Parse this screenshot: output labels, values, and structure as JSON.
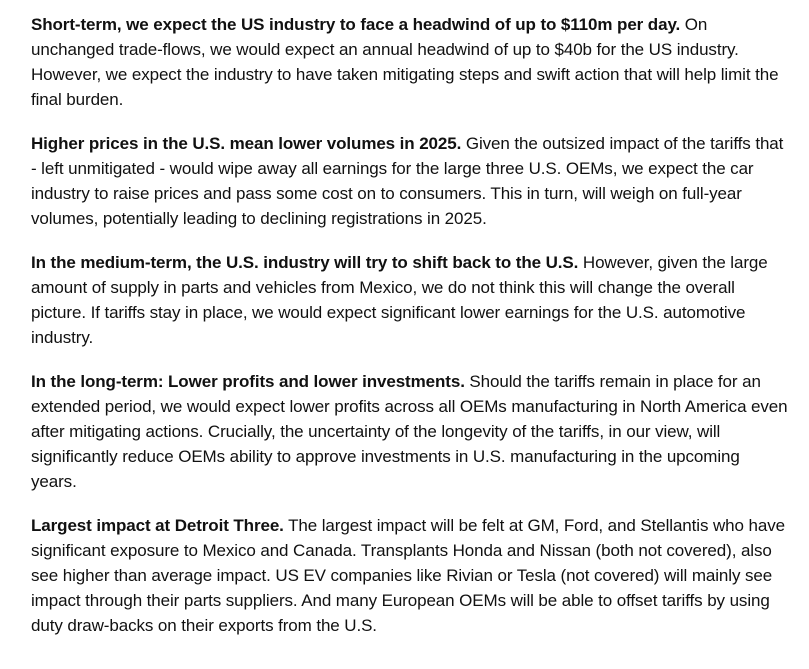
{
  "paragraphs": [
    {
      "lead": "Short-term, we expect the US industry to face a headwind of up to $110m per day.",
      "body": " On unchanged trade-flows, we would expect an annual headwind of up to $40b for the US industry. However, we expect the industry to have taken mitigating steps and swift action that will help limit the final burden."
    },
    {
      "lead": "Higher prices in the U.S. mean lower volumes in 2025.",
      "body": " Given the outsized impact of the tariffs that - left unmitigated - would wipe away all earnings for the large three U.S. OEMs, we expect the car industry to raise prices and pass some cost on to consumers. This in turn, will weigh on full-year volumes, potentially leading to declining registrations in 2025."
    },
    {
      "lead": "In the medium-term, the U.S. industry will try to shift back to the U.S.",
      "body": " However, given the large amount of supply in parts and vehicles from Mexico, we do not think this will change the overall picture. If tariffs stay in place, we would expect significant lower earnings for the U.S. automotive industry."
    },
    {
      "lead": "In the long-term: Lower profits and lower investments.",
      "body": " Should the tariffs remain in place for an extended period, we would expect lower profits across all OEMs manufacturing in North America even after mitigating actions. Crucially, the uncertainty of the longevity of the tariffs, in our view, will significantly reduce OEMs ability to approve investments in U.S. manufacturing in the upcoming years."
    },
    {
      "lead": "Largest impact at Detroit Three.",
      "body": " The largest impact will be felt at GM, Ford, and Stellantis who have significant exposure to Mexico and Canada. Transplants Honda and Nissan (both not covered), also see higher than average impact. US EV companies like Rivian or Tesla (not covered) will mainly see impact through their parts suppliers. And many European OEMs will be able to offset tariffs by using duty draw-backs on their exports from the U.S."
    }
  ]
}
